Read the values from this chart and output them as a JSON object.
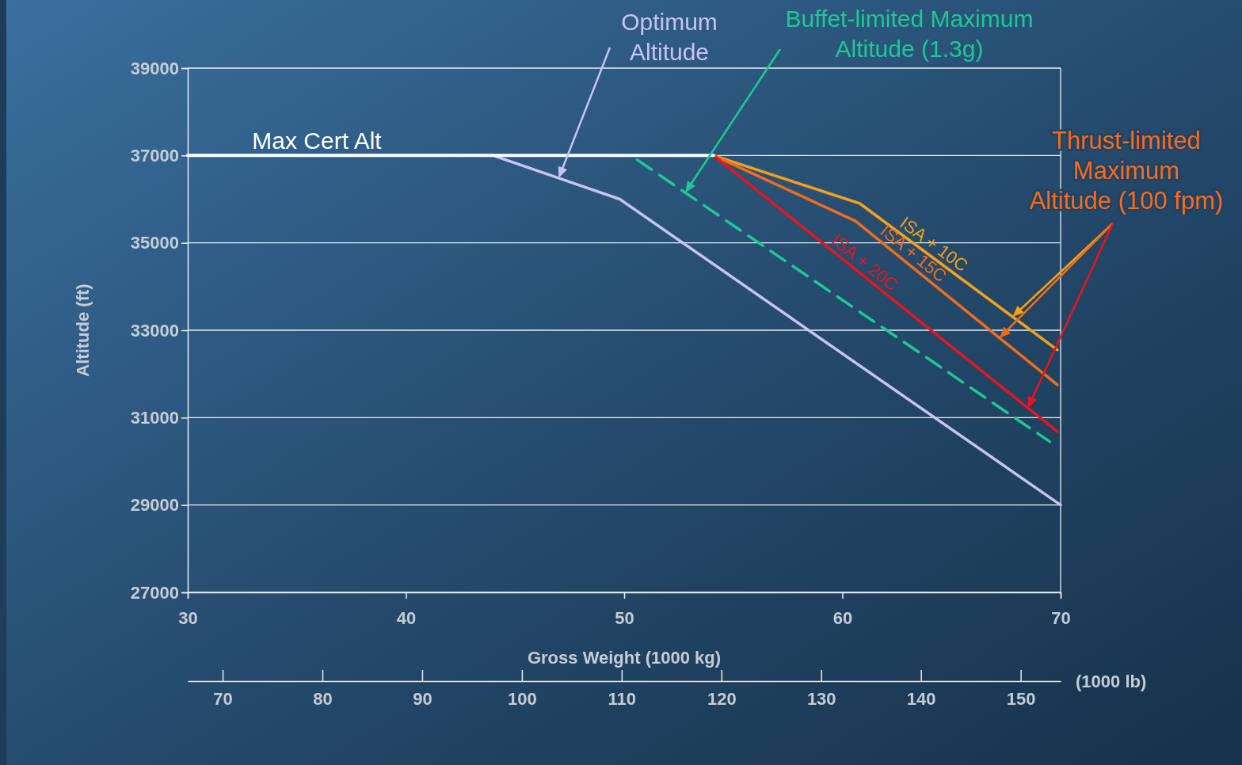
{
  "chart_data": {
    "type": "line",
    "xlabel": "Gross Weight (1000 kg)",
    "ylabel": "Altitude (ft)",
    "x2label": "(1000 lb)",
    "xlim": [
      30,
      70
    ],
    "xticks": [
      30,
      40,
      50,
      60,
      70
    ],
    "ylim": [
      27000,
      39000
    ],
    "yticks": [
      27000,
      29000,
      31000,
      33000,
      35000,
      37000,
      39000
    ],
    "x2lim": [
      66.5,
      154
    ],
    "x2ticks": [
      70,
      80,
      90,
      100,
      110,
      120,
      130,
      140,
      150
    ],
    "grid": "y",
    "marker": "none",
    "series": [
      {
        "name": "Max Cert Alt",
        "color": "#ffffff",
        "x": [
          30,
          54.1
        ],
        "values": [
          37000,
          37000
        ]
      },
      {
        "name": "Optimum Altitude",
        "color": "#c8c4f2",
        "x": [
          30,
          44,
          49.8,
          70
        ],
        "values": [
          37000,
          37000,
          36000,
          29000
        ]
      },
      {
        "name": "Buffet-limited Maximum Altitude (1.3g)",
        "color": "#1ec896",
        "line_style": "dashed",
        "x": [
          50.6,
          69.5
        ],
        "values": [
          36900,
          30450
        ]
      },
      {
        "name": "ISA + 10C",
        "color": "#f5a01a",
        "x": [
          54.1,
          60.8,
          69.85
        ],
        "values": [
          37000,
          35900,
          32550
        ]
      },
      {
        "name": "ISA + 15C",
        "color": "#f26c1c",
        "x": [
          54.1,
          60.6,
          69.85
        ],
        "values": [
          37000,
          35500,
          31750
        ]
      },
      {
        "name": "ISA + 20C",
        "color": "#e8141e",
        "x": [
          54.1,
          69.85
        ],
        "values": [
          37000,
          30680
        ]
      }
    ],
    "annotations": [
      "Thrust-limited Maximum Altitude (100 fpm)"
    ]
  }
}
